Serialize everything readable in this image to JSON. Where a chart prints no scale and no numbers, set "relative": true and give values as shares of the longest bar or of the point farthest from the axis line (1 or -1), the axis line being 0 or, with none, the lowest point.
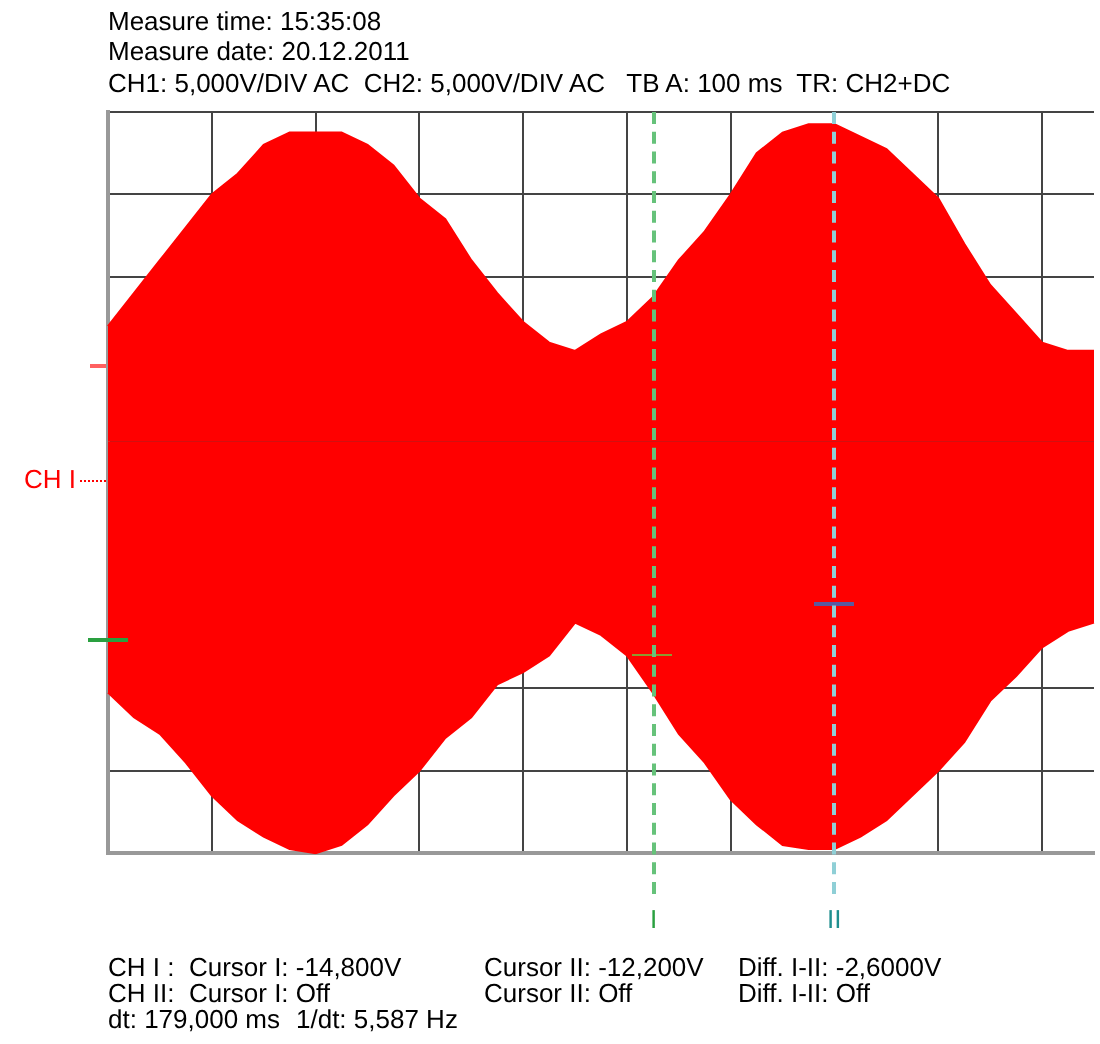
{
  "chart_data": {
    "type": "area",
    "title": "Measure time: 15:35:08",
    "subtitle": "Measure date: 20.12.2011",
    "annotations": [
      "CH1: 5,000V/DIV AC  CH2: 5,000V/DIV AC   TB A: 100 ms  TR: CH2+DC",
      "CH I :  Cursor I: -14,800V",
      "Cursor II: -12,200V",
      "Diff. I-II: -2,6000V",
      "CH II:  Cursor I: Off",
      "Cursor II: Off",
      "Diff. I-II: Off",
      "dt: 179,000 ms",
      "1/dt: 5,587 Hz",
      "CH I",
      "I",
      "II"
    ],
    "relative": true,
    "categories": [
      null,
      null,
      null,
      null,
      null,
      null,
      null,
      null,
      null,
      null,
      null,
      null,
      null,
      null,
      null,
      null,
      null,
      null,
      null,
      null,
      null,
      null,
      null,
      null,
      null,
      null,
      null,
      null,
      null,
      null,
      null,
      null,
      null,
      null,
      null,
      null,
      null,
      null,
      null
    ],
    "series": [
      {
        "color": "#ff0000",
        "values": [
          0.28,
          0.36,
          0.44,
          0.52,
          0.6,
          0.65,
          0.72,
          0.75,
          0.75,
          0.75,
          0.72,
          0.67,
          0.59,
          0.54,
          0.44,
          0.36,
          0.29,
          0.24,
          0.22,
          0.26,
          0.29,
          0.35,
          0.44,
          0.51,
          0.6,
          0.7,
          0.75,
          0.77,
          0.77,
          0.74,
          0.71,
          0.65,
          0.59,
          0.48,
          0.38,
          0.31,
          0.24,
          0.22,
          0.22
        ]
      },
      {
        "color": "#ff0000",
        "values": [
          -0.61,
          -0.67,
          -0.71,
          -0.78,
          -0.86,
          -0.92,
          -0.96,
          -0.99,
          -1,
          -0.98,
          -0.93,
          -0.86,
          -0.8,
          -0.72,
          -0.67,
          -0.59,
          -0.56,
          -0.52,
          -0.44,
          -0.47,
          -0.52,
          -0.61,
          -0.71,
          -0.78,
          -0.87,
          -0.93,
          -0.98,
          -0.99,
          -0.99,
          -0.96,
          -0.92,
          -0.86,
          -0.8,
          -0.73,
          -0.63,
          -0.57,
          -0.5,
          -0.46,
          -0.44
        ]
      }
    ],
    "grid": true
  }
}
